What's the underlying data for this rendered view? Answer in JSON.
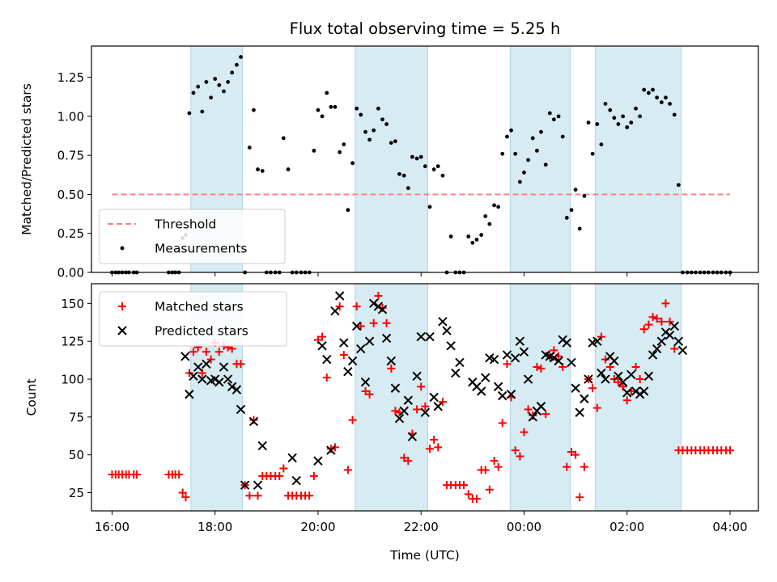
{
  "title": "Flux total observing time = 5.25 h",
  "colors": {
    "threshold": "#ff8080",
    "measurements": "#000000",
    "matched": "#ff0000",
    "predicted": "#000000",
    "shade": "#add8e6"
  },
  "chart_data": [
    {
      "type": "scatter",
      "ylabel": "Matched/Predicted stars",
      "ylim": [
        0,
        1.45
      ],
      "xlim": [
        15.6,
        28.55
      ],
      "yticks": [
        0,
        0.25,
        0.5,
        0.75,
        1.0,
        1.25
      ],
      "ytick_labels": [
        "0.00",
        "0.25",
        "0.50",
        "0.75",
        "1.00",
        "1.25"
      ],
      "shaded_intervals_hours": [
        [
          17.53,
          18.53
        ],
        [
          20.72,
          22.13
        ],
        [
          23.73,
          24.9
        ],
        [
          25.38,
          27.05
        ]
      ],
      "threshold": {
        "name": "Threshold",
        "value": 0.5,
        "x_range": [
          16.0,
          28.0
        ]
      },
      "legend": {
        "placement": "lower-left",
        "entries": [
          "Threshold",
          "Measurements"
        ]
      },
      "series": [
        {
          "name": "Measurements",
          "x": [
            16.0,
            16.07,
            16.13,
            16.2,
            16.27,
            16.33,
            16.42,
            16.48,
            17.1,
            17.17,
            17.23,
            17.3,
            17.37,
            17.43,
            17.5,
            17.58,
            17.67,
            17.75,
            17.83,
            17.92,
            18.0,
            18.08,
            18.17,
            18.25,
            18.33,
            18.42,
            18.5,
            18.58,
            18.67,
            18.75,
            18.83,
            18.92,
            19.0,
            19.08,
            19.17,
            19.25,
            19.33,
            19.42,
            19.5,
            19.58,
            19.67,
            19.75,
            19.83,
            19.92,
            20.0,
            20.08,
            20.17,
            20.25,
            20.33,
            20.42,
            20.5,
            20.58,
            20.67,
            20.75,
            20.83,
            20.92,
            21.0,
            21.08,
            21.17,
            21.25,
            21.33,
            21.42,
            21.5,
            21.58,
            21.67,
            21.75,
            21.83,
            21.92,
            22.0,
            22.08,
            22.17,
            22.25,
            22.33,
            22.42,
            22.5,
            22.58,
            22.67,
            22.75,
            22.83,
            22.92,
            23.0,
            23.08,
            23.17,
            23.25,
            23.33,
            23.42,
            23.5,
            23.58,
            23.67,
            23.75,
            23.83,
            23.92,
            24.0,
            24.08,
            24.17,
            24.25,
            24.33,
            24.42,
            24.5,
            24.58,
            24.67,
            24.75,
            24.83,
            24.92,
            25.0,
            25.08,
            25.17,
            25.25,
            25.33,
            25.42,
            25.5,
            25.58,
            25.67,
            25.75,
            25.83,
            25.92,
            26.0,
            26.08,
            26.17,
            26.25,
            26.33,
            26.42,
            26.5,
            26.58,
            26.67,
            26.75,
            26.83,
            26.92,
            27.0,
            27.08,
            27.17,
            27.25,
            27.33,
            27.42,
            27.5,
            27.58,
            27.67,
            27.75,
            27.83,
            27.92,
            28.0
          ],
          "y": [
            0.0,
            0.0,
            0.0,
            0.0,
            0.0,
            0.0,
            0.0,
            0.0,
            0.0,
            0.0,
            0.0,
            0.0,
            0.22,
            0.24,
            1.02,
            1.15,
            1.19,
            1.03,
            1.22,
            1.12,
            1.24,
            1.2,
            1.16,
            1.22,
            1.28,
            1.33,
            1.38,
            0.0,
            0.8,
            1.04,
            0.66,
            0.65,
            0.0,
            0.0,
            0.0,
            0.0,
            0.86,
            0.66,
            0.0,
            0.0,
            0.0,
            0.0,
            0.0,
            0.78,
            1.04,
            1.0,
            1.15,
            1.06,
            1.06,
            0.77,
            0.82,
            0.4,
            0.7,
            1.05,
            1.01,
            0.9,
            0.85,
            0.91,
            1.05,
            0.98,
            0.95,
            0.83,
            0.84,
            0.63,
            0.62,
            0.54,
            0.74,
            0.73,
            0.74,
            0.68,
            0.42,
            0.66,
            0.68,
            0.62,
            0.0,
            0.23,
            0.0,
            0.0,
            0.0,
            0.23,
            0.19,
            0.21,
            0.24,
            0.36,
            0.31,
            0.43,
            0.42,
            0.76,
            0.87,
            0.91,
            0.76,
            0.58,
            0.64,
            0.72,
            0.86,
            0.78,
            0.9,
            0.69,
            1.02,
            0.98,
            1.0,
            0.87,
            0.35,
            0.4,
            0.53,
            0.28,
            0.49,
            0.96,
            0.76,
            0.95,
            0.82,
            1.08,
            1.04,
            0.99,
            0.95,
            1.0,
            0.93,
            0.96,
            1.05,
            1.0,
            1.17,
            1.15,
            1.17,
            1.12,
            1.09,
            1.12,
            1.08,
            1.01,
            0.56,
            0.0,
            0.0,
            0.0,
            0.0,
            0.0,
            0.0,
            0.0,
            0.0,
            0.0,
            0.0,
            0.0,
            0.0
          ]
        }
      ]
    },
    {
      "type": "scatter",
      "ylabel": "Count",
      "xlabel": "Time (UTC)",
      "ylim": [
        13,
        163
      ],
      "xlim": [
        15.6,
        28.55
      ],
      "yticks": [
        25,
        50,
        75,
        100,
        125,
        150
      ],
      "ytick_labels": [
        "25",
        "50",
        "75",
        "100",
        "125",
        "150"
      ],
      "xticks": [
        16,
        18,
        20,
        22,
        24,
        26,
        28
      ],
      "xtick_labels": [
        "16:00",
        "18:00",
        "20:00",
        "22:00",
        "00:00",
        "02:00",
        "04:00"
      ],
      "shaded_intervals_hours": [
        [
          17.53,
          18.53
        ],
        [
          20.72,
          22.13
        ],
        [
          23.73,
          24.9
        ],
        [
          25.38,
          27.05
        ]
      ],
      "legend": {
        "placement": "upper-left",
        "entries": [
          "Matched stars",
          "Predicted stars"
        ]
      },
      "series": [
        {
          "name": "Matched stars",
          "x": [
            16.0,
            16.07,
            16.13,
            16.2,
            16.27,
            16.33,
            16.42,
            16.48,
            17.1,
            17.17,
            17.23,
            17.3,
            17.37,
            17.43,
            17.5,
            17.58,
            17.67,
            17.75,
            17.83,
            17.92,
            18.0,
            18.08,
            18.17,
            18.25,
            18.33,
            18.42,
            18.5,
            18.58,
            18.67,
            18.75,
            18.83,
            18.92,
            19.0,
            19.08,
            19.17,
            19.25,
            19.33,
            19.42,
            19.5,
            19.58,
            19.67,
            19.75,
            19.83,
            19.92,
            20.0,
            20.08,
            20.17,
            20.25,
            20.33,
            20.42,
            20.5,
            20.58,
            20.67,
            20.75,
            20.83,
            20.92,
            21.0,
            21.08,
            21.17,
            21.25,
            21.33,
            21.42,
            21.5,
            21.58,
            21.67,
            21.75,
            21.83,
            21.92,
            22.0,
            22.08,
            22.17,
            22.25,
            22.33,
            22.42,
            22.5,
            22.58,
            22.67,
            22.75,
            22.83,
            22.92,
            23.0,
            23.08,
            23.17,
            23.25,
            23.33,
            23.42,
            23.5,
            23.58,
            23.67,
            23.75,
            23.83,
            23.92,
            24.0,
            24.08,
            24.17,
            24.25,
            24.33,
            24.42,
            24.5,
            24.58,
            24.67,
            24.75,
            24.83,
            24.92,
            25.0,
            25.08,
            25.17,
            25.25,
            25.33,
            25.42,
            25.5,
            25.58,
            25.67,
            25.75,
            25.83,
            25.92,
            26.0,
            26.08,
            26.17,
            26.25,
            26.33,
            26.42,
            26.5,
            26.58,
            26.67,
            26.75,
            26.83,
            26.92,
            27.0,
            27.08,
            27.17,
            27.25,
            27.33,
            27.42,
            27.5,
            27.58,
            27.67,
            27.75,
            27.83,
            27.92,
            28.0
          ],
          "y": [
            37,
            37,
            37,
            37,
            37,
            37,
            37,
            37,
            37,
            37,
            37,
            37,
            25,
            22,
            104,
            118,
            121,
            104,
            118,
            113,
            124,
            118,
            122,
            121,
            120,
            110,
            110,
            30,
            23,
            73,
            23,
            36,
            36,
            36,
            36,
            36,
            41,
            23,
            23,
            23,
            23,
            23,
            23,
            36,
            126,
            128,
            101,
            54,
            55,
            148,
            116,
            40,
            73,
            148,
            135,
            92,
            90,
            137,
            155,
            147,
            137,
            107,
            79,
            78,
            48,
            46,
            64,
            80,
            95,
            82,
            54,
            60,
            55,
            85,
            30,
            30,
            30,
            30,
            30,
            24,
            21,
            21,
            40,
            40,
            27,
            46,
            42,
            71,
            110,
            88,
            53,
            49,
            65,
            80,
            76,
            108,
            107,
            77,
            115,
            119,
            115,
            108,
            42,
            52,
            50,
            22,
            42,
            100,
            94,
            81,
            128,
            113,
            108,
            100,
            98,
            95,
            86,
            92,
            108,
            100,
            133,
            136,
            141,
            140,
            138,
            150,
            138,
            120,
            53,
            53,
            53,
            53,
            53,
            53,
            53,
            53,
            53,
            53,
            53,
            53,
            53
          ]
        },
        {
          "name": "Predicted stars",
          "x": [
            17.42,
            17.5,
            17.58,
            17.67,
            17.75,
            17.83,
            17.92,
            18.0,
            18.08,
            18.17,
            18.25,
            18.33,
            18.42,
            18.5,
            18.58,
            18.75,
            18.83,
            18.92,
            19.5,
            19.58,
            20.0,
            20.08,
            20.17,
            20.25,
            20.33,
            20.42,
            20.5,
            20.58,
            20.67,
            20.75,
            20.83,
            20.92,
            21.0,
            21.08,
            21.17,
            21.25,
            21.33,
            21.42,
            21.5,
            21.58,
            21.67,
            21.75,
            21.83,
            21.92,
            22.0,
            22.08,
            22.17,
            22.25,
            22.33,
            22.42,
            22.5,
            22.58,
            22.67,
            22.75,
            23.0,
            23.08,
            23.17,
            23.25,
            23.33,
            23.42,
            23.5,
            23.58,
            23.67,
            23.75,
            23.83,
            23.92,
            24.0,
            24.08,
            24.17,
            24.25,
            24.33,
            24.42,
            24.5,
            24.58,
            24.67,
            24.75,
            24.83,
            24.92,
            25.0,
            25.08,
            25.17,
            25.25,
            25.33,
            25.42,
            25.5,
            25.58,
            25.67,
            25.75,
            25.83,
            25.92,
            26.0,
            26.08,
            26.17,
            26.25,
            26.33,
            26.42,
            26.5,
            26.58,
            26.67,
            26.75,
            26.83,
            26.92,
            27.0,
            27.08
          ],
          "y": [
            115,
            90,
            102,
            108,
            100,
            110,
            99,
            100,
            98,
            108,
            100,
            95,
            93,
            80,
            30,
            72,
            30,
            56,
            48,
            33,
            46,
            122,
            113,
            53,
            145,
            155,
            124,
            105,
            112,
            135,
            120,
            98,
            125,
            150,
            148,
            146,
            127,
            112,
            94,
            74,
            79,
            86,
            62,
            102,
            128,
            78,
            128,
            88,
            82,
            138,
            132,
            122,
            104,
            111,
            98,
            95,
            92,
            101,
            114,
            113,
            95,
            89,
            116,
            90,
            114,
            125,
            118,
            100,
            75,
            79,
            82,
            116,
            115,
            114,
            112,
            126,
            124,
            111,
            94,
            78,
            87,
            100,
            124,
            125,
            104,
            100,
            115,
            112,
            102,
            98,
            91,
            103,
            92,
            90,
            92,
            102,
            116,
            120,
            125,
            131,
            129,
            135,
            125,
            119
          ]
        }
      ]
    }
  ]
}
